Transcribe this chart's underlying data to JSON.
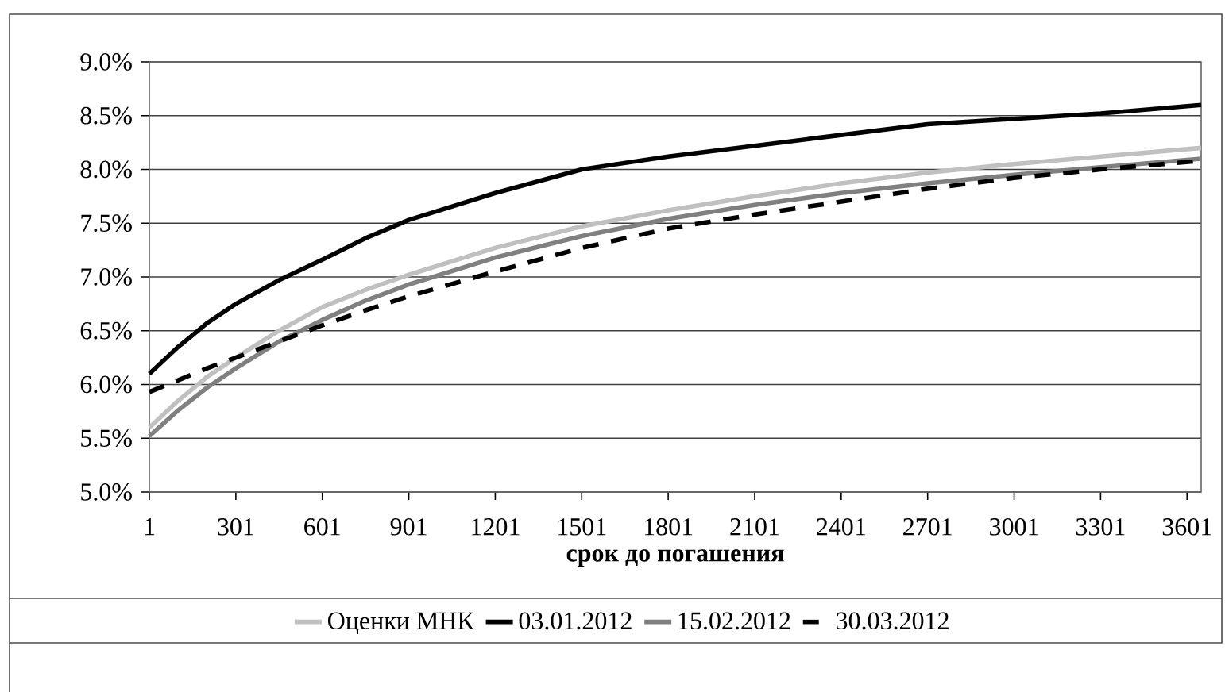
{
  "chart_data": {
    "type": "line",
    "xlabel": "срок до погашения",
    "x": [
      1,
      101,
      201,
      301,
      451,
      601,
      751,
      901,
      1201,
      1501,
      1801,
      2101,
      2401,
      2701,
      3001,
      3301,
      3650
    ],
    "xlim": [
      1,
      3650
    ],
    "xticks": [
      1,
      301,
      601,
      901,
      1201,
      1501,
      1801,
      2101,
      2401,
      2701,
      3001,
      3301,
      3601
    ],
    "ylim": [
      5.0,
      9.0
    ],
    "yticks": [
      {
        "value": 5.0,
        "label": "5.0%"
      },
      {
        "value": 5.5,
        "label": "5.5%"
      },
      {
        "value": 6.0,
        "label": "6.0%"
      },
      {
        "value": 6.5,
        "label": "6.5%"
      },
      {
        "value": 7.0,
        "label": "7.0%"
      },
      {
        "value": 7.5,
        "label": "7.5%"
      },
      {
        "value": 8.0,
        "label": "8.0%"
      },
      {
        "value": 8.5,
        "label": "8.5%"
      },
      {
        "value": 9.0,
        "label": "9.0%"
      }
    ],
    "grid": "y",
    "legend": "bottom",
    "series": [
      {
        "name": "Оценки МНК",
        "color": "#c0c0c0",
        "values": [
          5.6,
          5.85,
          6.07,
          6.25,
          6.5,
          6.72,
          6.88,
          7.02,
          7.27,
          7.47,
          7.62,
          7.75,
          7.87,
          7.97,
          8.05,
          8.12,
          8.2
        ]
      },
      {
        "name": "03.01.2012",
        "color": "#000000",
        "values": [
          6.1,
          6.35,
          6.57,
          6.75,
          6.97,
          7.16,
          7.36,
          7.53,
          7.78,
          8.0,
          8.12,
          8.22,
          8.32,
          8.42,
          8.47,
          8.52,
          8.6
        ]
      },
      {
        "name": "15.02.2012",
        "color": "#808080",
        "values": [
          5.52,
          5.76,
          5.97,
          6.15,
          6.4,
          6.6,
          6.78,
          6.93,
          7.18,
          7.38,
          7.54,
          7.67,
          7.78,
          7.87,
          7.95,
          8.02,
          8.1
        ]
      },
      {
        "name": "30.03.2012",
        "color": "#000000",
        "line_style": "dashed",
        "values": [
          5.93,
          6.04,
          6.15,
          6.25,
          6.4,
          6.55,
          6.69,
          6.82,
          7.05,
          7.27,
          7.45,
          7.58,
          7.7,
          7.82,
          7.92,
          8.0,
          8.08
        ]
      }
    ]
  }
}
